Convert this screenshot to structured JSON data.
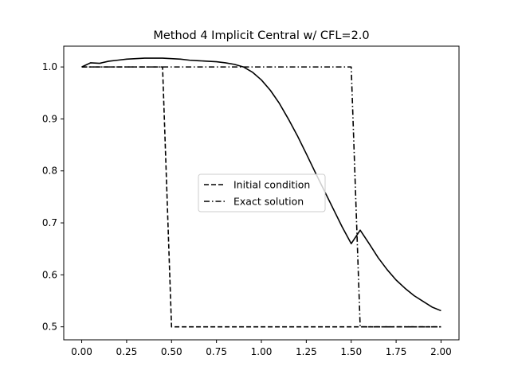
{
  "chart_data": {
    "type": "line",
    "title": "Method 4 Implicit Central w/ CFL=2.0",
    "xlabel": "",
    "ylabel": "",
    "xlim": [
      -0.1,
      2.1
    ],
    "ylim": [
      0.475,
      1.04
    ],
    "xticks": [
      0.0,
      0.25,
      0.5,
      0.75,
      1.0,
      1.25,
      1.5,
      1.75,
      2.0
    ],
    "xtick_labels": [
      "0.00",
      "0.25",
      "0.50",
      "0.75",
      "1.00",
      "1.25",
      "1.50",
      "1.75",
      "2.00"
    ],
    "yticks": [
      0.5,
      0.6,
      0.7,
      0.8,
      0.9,
      1.0
    ],
    "ytick_labels": [
      "0.5",
      "0.6",
      "0.7",
      "0.8",
      "0.9",
      "1.0"
    ],
    "grid": false,
    "legend_position": "center",
    "series": [
      {
        "name": "Initial condition",
        "style": "dashed",
        "color": "#000000",
        "x": [
          0.0,
          0.45,
          0.5,
          2.0
        ],
        "y": [
          1.0,
          1.0,
          0.5,
          0.5
        ]
      },
      {
        "name": "Exact solution",
        "style": "dashdot",
        "color": "#000000",
        "x": [
          0.0,
          1.5,
          1.55,
          2.0
        ],
        "y": [
          1.0,
          1.0,
          0.5,
          0.5
        ]
      },
      {
        "style": "solid",
        "color": "#000000",
        "x": [
          0.0,
          0.05,
          0.1,
          0.15,
          0.2,
          0.25,
          0.3,
          0.35,
          0.4,
          0.45,
          0.5,
          0.55,
          0.6,
          0.65,
          0.7,
          0.75,
          0.8,
          0.85,
          0.9,
          0.95,
          1.0,
          1.05,
          1.1,
          1.15,
          1.2,
          1.25,
          1.3,
          1.35,
          1.4,
          1.45,
          1.5,
          1.55,
          1.6,
          1.65,
          1.7,
          1.75,
          1.8,
          1.85,
          1.9,
          1.95,
          2.0
        ],
        "y": [
          1.0,
          1.008,
          1.007,
          1.011,
          1.013,
          1.015,
          1.016,
          1.017,
          1.017,
          1.017,
          1.016,
          1.015,
          1.013,
          1.012,
          1.011,
          1.01,
          1.008,
          1.005,
          1.0,
          0.99,
          0.975,
          0.955,
          0.93,
          0.9,
          0.868,
          0.833,
          0.797,
          0.762,
          0.727,
          0.692,
          0.66,
          0.686,
          0.66,
          0.633,
          0.61,
          0.59,
          0.574,
          0.56,
          0.549,
          0.538,
          0.531
        ]
      }
    ]
  }
}
